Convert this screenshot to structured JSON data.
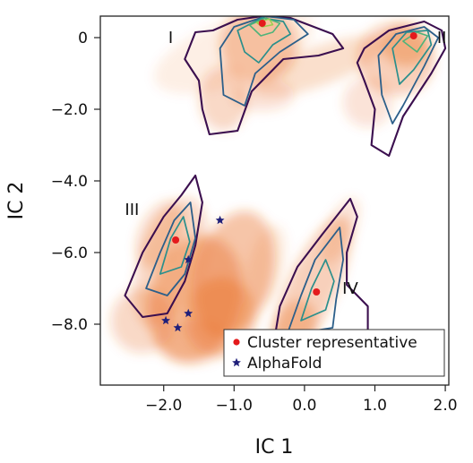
{
  "chart_data": {
    "type": "density-contour-scatter",
    "xlabel": "IC 1",
    "ylabel": "IC 2",
    "xlim": [
      -2.9,
      2.05
    ],
    "ylim": [
      -9.7,
      0.6
    ],
    "xticks": [
      -2.0,
      -1.0,
      0.0,
      1.0,
      2.0
    ],
    "xtick_labels": [
      "−2.0",
      "−1.0",
      "0.0",
      "1.0",
      "2.0"
    ],
    "yticks": [
      0,
      -2.0,
      -4.0,
      -6.0,
      -8.0
    ],
    "ytick_labels": [
      "0",
      "−2.0",
      "−4.0",
      "−6.0",
      "−8.0"
    ],
    "grid": false,
    "density_color": "#e8661a",
    "contour_colors": [
      "#3b0f4f",
      "#2c5f8a",
      "#2a8f8c",
      "#4fb37a",
      "#98d14f"
    ],
    "clusters": [
      {
        "label": "I",
        "label_pos": [
          -1.9,
          0.0
        ],
        "representative": [
          -0.6,
          0.4
        ]
      },
      {
        "label": "II",
        "label_pos": [
          1.95,
          0.0
        ],
        "representative": [
          1.55,
          0.05
        ]
      },
      {
        "label": "III",
        "label_pos": [
          -2.45,
          -4.8
        ],
        "representative": [
          -1.83,
          -5.65
        ]
      },
      {
        "label": "IV",
        "label_pos": [
          0.65,
          -7.0
        ],
        "representative": [
          0.17,
          -7.1
        ]
      }
    ],
    "series": [
      {
        "name": "Cluster representative",
        "marker": "circle",
        "color": "#e41a1c",
        "points": [
          [
            -0.6,
            0.4
          ],
          [
            1.55,
            0.05
          ],
          [
            -1.83,
            -5.65
          ],
          [
            0.17,
            -7.1
          ]
        ]
      },
      {
        "name": "AlphaFold",
        "marker": "star",
        "color": "#1f1f7a",
        "points": [
          [
            -1.2,
            -5.1
          ],
          [
            -1.65,
            -6.2
          ],
          [
            -1.65,
            -7.7
          ],
          [
            -1.97,
            -7.9
          ],
          [
            -1.8,
            -8.1
          ]
        ]
      }
    ],
    "legend": {
      "position": "bottom-right",
      "entries": [
        "Cluster representative",
        "AlphaFold"
      ]
    }
  }
}
